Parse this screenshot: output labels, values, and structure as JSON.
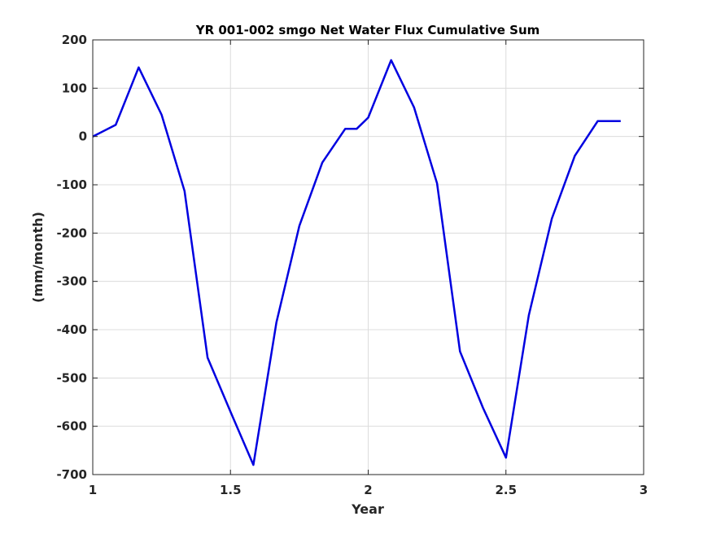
{
  "chart_data": {
    "type": "line",
    "title": "YR 001-002 smgo Net Water Flux Cumulative Sum",
    "xlabel": "Year",
    "ylabel": "(mm/month)",
    "xlim": [
      1,
      3
    ],
    "ylim": [
      -700,
      200
    ],
    "xticks": [
      "1",
      "1.5",
      "2",
      "2.5",
      "3"
    ],
    "yticks": [
      "200",
      "100",
      "0",
      "-100",
      "-200",
      "-300",
      "-400",
      "-500",
      "-600",
      "-700"
    ],
    "grid": true,
    "series": [
      {
        "color": "#0000e0",
        "x": [
          1.0,
          1.0833,
          1.1667,
          1.25,
          1.3333,
          1.4167,
          1.5,
          1.5833,
          1.6667,
          1.75,
          1.8333,
          1.9167,
          1.9583,
          2.0,
          2.0833,
          2.1667,
          2.25,
          2.3333,
          2.4167,
          2.5,
          2.5833,
          2.6667,
          2.75,
          2.8333,
          2.9167
        ],
        "y": [
          0,
          24,
          143,
          45,
          -113,
          -458,
          -570,
          -680,
          -385,
          -185,
          -54,
          16,
          16,
          39,
          158,
          60,
          -97,
          -445,
          -562,
          -665,
          -370,
          -170,
          -40,
          32,
          32
        ]
      }
    ]
  }
}
